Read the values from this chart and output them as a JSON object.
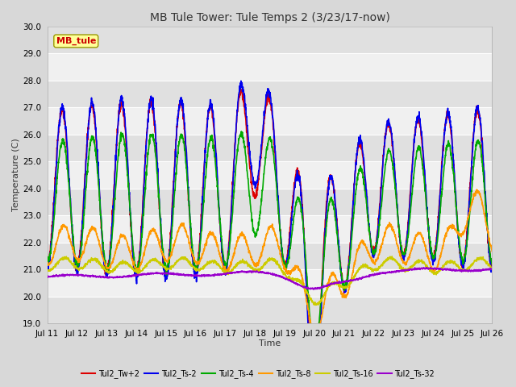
{
  "title": "MB Tule Tower: Tule Temps 2 (3/23/17-now)",
  "xlabel": "Time",
  "ylabel": "Temperature (C)",
  "ylim": [
    19.0,
    30.0
  ],
  "yticks": [
    19.0,
    20.0,
    21.0,
    22.0,
    23.0,
    24.0,
    25.0,
    26.0,
    27.0,
    28.0,
    29.0,
    30.0
  ],
  "xlim": [
    0,
    15
  ],
  "xtick_labels": [
    "Jul 11",
    "Jul 12",
    "Jul 13",
    "Jul 14",
    "Jul 15",
    "Jul 16",
    "Jul 17",
    "Jul 18",
    "Jul 19",
    "Jul 20",
    "Jul 21",
    "Jul 22",
    "Jul 23",
    "Jul 24",
    "Jul 25",
    "Jul 26"
  ],
  "series": {
    "Tul2_Tw+2": {
      "color": "#dd0000",
      "lw": 1.2
    },
    "Tul2_Ts-2": {
      "color": "#0000ee",
      "lw": 1.2
    },
    "Tul2_Ts-4": {
      "color": "#00aa00",
      "lw": 1.2
    },
    "Tul2_Ts-8": {
      "color": "#ff9900",
      "lw": 1.2
    },
    "Tul2_Ts-16": {
      "color": "#cccc00",
      "lw": 1.2
    },
    "Tul2_Ts-32": {
      "color": "#9900cc",
      "lw": 1.2
    }
  },
  "bg_color": "#d8d8d8",
  "plot_bg_light": "#f0f0f0",
  "plot_bg_dark": "#e0e0e0",
  "grid_color": "#ffffff",
  "title_fontsize": 10,
  "label_fontsize": 8,
  "tick_fontsize": 7.5,
  "legend_box_color": "#ffff99",
  "legend_box_edge": "#999900",
  "legend_label": "MB_tule",
  "legend_label_color": "#cc0000"
}
